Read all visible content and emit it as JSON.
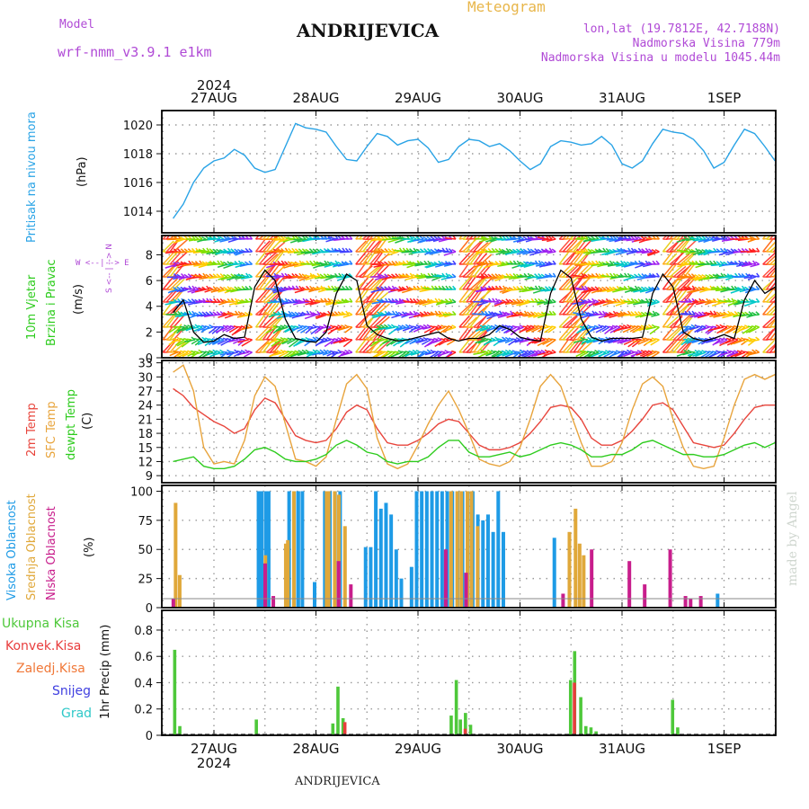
{
  "header": {
    "model_label": "Model",
    "model_name": "wrf-nmm_v3.9.1 e1km",
    "station": "ANDRIJEVICA",
    "title": "Meteogram",
    "coords": "lon,lat (19.7812E, 42.7188N)",
    "altitude": "Nadmorska Visina 779m",
    "model_altitude": "Nadmorska Visina u modelu 1045.44m",
    "footer_station": "ANDRIJEVICA",
    "watermark": "made by Angel"
  },
  "time_axis": {
    "year": "2024",
    "labels": [
      "27AUG",
      "28AUG",
      "29AUG",
      "30AUG",
      "31AUG",
      "1SEP"
    ]
  },
  "panel_labels": {
    "pressure": "Pritisak na nivou mora",
    "pressure_unit": "(hPa)",
    "wind_title": "10m Vjetar",
    "wind_sub": "Brzina i Pravac",
    "wind_unit": "(m/s)",
    "compass": "W <--|--> E",
    "compass_ns": "S <-- | --> N",
    "temp_2m": "2m Temp",
    "temp_sfc": "SFC Temp",
    "temp_dew": "dewpt Temp",
    "temp_unit": "(C)",
    "cloud_high": "Visoka Oblacnost",
    "cloud_mid": "Srednja Oblacnost",
    "cloud_low": "Niska Oblacnost",
    "cloud_unit": "(%)",
    "precip_unit": "1hr Precip (mm)",
    "precip_legend": [
      "Ukupna Kisa",
      "Konvek.Kisa",
      "Zaledj.Kisa",
      "Snijeg",
      "Grad"
    ]
  },
  "colors": {
    "pressure": "#29a3e6",
    "temp2m": "#e8453c",
    "sfc": "#e8a43c",
    "dew": "#2ecc1e",
    "high": "#1e9be6",
    "mid": "#e0a83a",
    "low": "#c81e8c",
    "precip_total": "#4ec83a",
    "precip_conv": "#e83c3c",
    "precip_frz": "#f07838",
    "snow": "#4040e0",
    "hail": "#2ec8c8",
    "purple": "#b04ad6"
  },
  "chart_data": [
    {
      "type": "line",
      "name": "pressure",
      "x_unit": "day from 27AUG 00",
      "ylim": [
        1012.5,
        1021
      ],
      "yticks": [
        1014,
        1016,
        1018,
        1020
      ],
      "x": [
        -0.4,
        -0.3,
        -0.2,
        -0.1,
        0,
        0.1,
        0.2,
        0.3,
        0.4,
        0.5,
        0.6,
        0.7,
        0.8,
        0.9,
        1.0,
        1.1,
        1.2,
        1.3,
        1.4,
        1.5,
        1.6,
        1.7,
        1.8,
        1.9,
        2.0,
        2.1,
        2.2,
        2.3,
        2.4,
        2.5,
        2.6,
        2.7,
        2.8,
        2.9,
        3.0,
        3.1,
        3.2,
        3.3,
        3.4,
        3.5,
        3.6,
        3.7,
        3.8,
        3.9,
        4.0,
        4.1,
        4.2,
        4.3,
        4.4,
        4.5,
        4.6,
        4.7,
        4.8,
        4.9,
        5.0,
        5.1,
        5.2,
        5.3,
        5.4,
        5.5
      ],
      "y": [
        1013.5,
        1014.5,
        1016,
        1017,
        1017.5,
        1017.7,
        1018.3,
        1017.9,
        1017.0,
        1016.7,
        1016.9,
        1018.5,
        1020.1,
        1019.8,
        1019.7,
        1019.5,
        1018.5,
        1017.6,
        1017.5,
        1018.5,
        1019.4,
        1019.2,
        1018.6,
        1018.9,
        1019.0,
        1018.4,
        1017.4,
        1017.6,
        1018.5,
        1019.0,
        1018.9,
        1018.5,
        1018.7,
        1018.2,
        1017.5,
        1016.9,
        1017.3,
        1018.5,
        1018.9,
        1018.8,
        1018.6,
        1018.7,
        1019.2,
        1018.6,
        1017.3,
        1017.0,
        1017.5,
        1018.7,
        1019.7,
        1019.5,
        1019.4,
        1019.0,
        1018.2,
        1017.0,
        1017.4,
        1018.6,
        1019.7,
        1019.4,
        1018.5,
        1017.5
      ]
    },
    {
      "type": "line",
      "name": "wind_speed",
      "ylim": [
        0,
        9.5
      ],
      "yticks": [
        0,
        2,
        4,
        6,
        8
      ],
      "x": [
        -0.4,
        -0.3,
        -0.2,
        -0.1,
        0,
        0.1,
        0.2,
        0.3,
        0.4,
        0.5,
        0.6,
        0.7,
        0.8,
        0.9,
        1.0,
        1.1,
        1.2,
        1.3,
        1.4,
        1.5,
        1.6,
        1.7,
        1.8,
        1.9,
        2.0,
        2.1,
        2.2,
        2.3,
        2.4,
        2.5,
        2.6,
        2.7,
        2.8,
        2.9,
        3.0,
        3.1,
        3.2,
        3.3,
        3.4,
        3.5,
        3.6,
        3.7,
        3.8,
        3.9,
        4.0,
        4.1,
        4.2,
        4.3,
        4.4,
        4.5,
        4.6,
        4.7,
        4.8,
        4.9,
        5.0,
        5.1,
        5.2,
        5.3,
        5.4,
        5.5
      ],
      "y": [
        3.5,
        4.5,
        2.0,
        1.2,
        1.3,
        1.8,
        1.5,
        1.6,
        5.5,
        6.8,
        6.0,
        3.0,
        1.5,
        1.3,
        1.2,
        2.0,
        5.0,
        6.5,
        6.0,
        2.5,
        1.8,
        1.5,
        1.3,
        1.4,
        1.6,
        1.8,
        2.0,
        1.5,
        1.3,
        1.5,
        1.5,
        1.8,
        2.5,
        2.2,
        1.6,
        1.4,
        1.3,
        5.0,
        6.8,
        6.2,
        3.0,
        1.6,
        1.3,
        1.5,
        1.5,
        1.5,
        1.6,
        5.0,
        6.5,
        5.5,
        2.0,
        1.5,
        1.3,
        1.5,
        1.8,
        1.5,
        4.5,
        6.0,
        5.0,
        5.5
      ]
    },
    {
      "type": "line",
      "name": "temperature",
      "ylim": [
        7.5,
        33.5
      ],
      "yticks": [
        9,
        12,
        15,
        18,
        21,
        24,
        27,
        30,
        33
      ],
      "x": [
        -0.4,
        -0.3,
        -0.2,
        -0.1,
        0,
        0.1,
        0.2,
        0.3,
        0.4,
        0.5,
        0.6,
        0.7,
        0.8,
        0.9,
        1.0,
        1.1,
        1.2,
        1.3,
        1.4,
        1.5,
        1.6,
        1.7,
        1.8,
        1.9,
        2.0,
        2.1,
        2.2,
        2.3,
        2.4,
        2.5,
        2.6,
        2.7,
        2.8,
        2.9,
        3.0,
        3.1,
        3.2,
        3.3,
        3.4,
        3.5,
        3.6,
        3.7,
        3.8,
        3.9,
        4.0,
        4.1,
        4.2,
        4.3,
        4.4,
        4.5,
        4.6,
        4.7,
        4.8,
        4.9,
        5.0,
        5.1,
        5.2,
        5.3,
        5.4,
        5.5
      ],
      "series": [
        {
          "name": "2m Temp",
          "color": "#e8453c",
          "values": [
            27.5,
            26.0,
            23.5,
            22.0,
            20.5,
            19.5,
            18.0,
            19.0,
            23.0,
            25.5,
            24.5,
            21.0,
            17.5,
            16.5,
            16.0,
            16.5,
            19.0,
            22.5,
            24.0,
            23.0,
            19.0,
            16.0,
            15.5,
            15.5,
            16.5,
            18.0,
            20.0,
            21.0,
            20.5,
            18.0,
            15.5,
            14.5,
            14.5,
            15.0,
            16.0,
            18.0,
            20.5,
            23.5,
            24.0,
            23.5,
            21.0,
            17.0,
            15.5,
            15.5,
            16.5,
            18.5,
            21.0,
            24.0,
            24.5,
            23.0,
            19.5,
            16.0,
            15.5,
            15.0,
            15.5,
            18.0,
            21.0,
            23.5,
            24.0,
            24.0
          ]
        },
        {
          "name": "SFC Temp",
          "color": "#e8a43c",
          "values": [
            31.0,
            32.5,
            27.0,
            15.0,
            11.5,
            12.0,
            11.5,
            16.5,
            26.0,
            30.0,
            28.0,
            20.0,
            12.5,
            12.0,
            11.0,
            13.0,
            21.0,
            28.5,
            30.5,
            27.5,
            17.0,
            11.5,
            10.5,
            11.5,
            15.5,
            20.0,
            24.0,
            27.0,
            23.0,
            18.0,
            12.5,
            11.5,
            11.0,
            12.0,
            15.0,
            21.0,
            28.0,
            30.5,
            28.0,
            22.0,
            16.0,
            11.0,
            11.0,
            12.0,
            16.0,
            23.0,
            28.5,
            30.0,
            28.0,
            21.0,
            15.0,
            11.0,
            10.5,
            11.0,
            17.0,
            24.0,
            29.5,
            30.5,
            29.5,
            30.5
          ]
        },
        {
          "name": "dewpt Temp",
          "color": "#2ecc1e",
          "values": [
            12.0,
            12.5,
            13.0,
            11.0,
            10.5,
            10.5,
            11.0,
            12.5,
            14.5,
            15.0,
            14.0,
            12.5,
            12.0,
            12.0,
            12.5,
            13.5,
            15.5,
            16.5,
            15.5,
            14.0,
            13.5,
            12.0,
            11.5,
            12.0,
            12.0,
            13.0,
            15.0,
            16.5,
            16.5,
            14.0,
            13.0,
            13.0,
            13.5,
            14.0,
            13.0,
            13.5,
            14.5,
            15.5,
            16.0,
            15.5,
            14.5,
            13.0,
            13.0,
            13.5,
            13.5,
            14.5,
            16.0,
            16.5,
            15.5,
            14.5,
            13.5,
            13.5,
            13.0,
            13.0,
            13.5,
            14.5,
            15.5,
            16.0,
            15.0,
            16.0
          ]
        }
      ]
    },
    {
      "type": "bar",
      "name": "cloud_cover",
      "ylim": [
        0,
        105
      ],
      "yticks": [
        0,
        25,
        50,
        75,
        100
      ],
      "series": [
        {
          "name": "Visoka Oblacnost",
          "color": "#1e9be6",
          "x": [
            0.45,
            0.48,
            0.52,
            0.55,
            0.75,
            0.8,
            0.84,
            0.88,
            1.0,
            1.1,
            1.15,
            1.2,
            1.25,
            1.5,
            1.55,
            1.6,
            1.65,
            1.7,
            1.75,
            1.8,
            1.85,
            1.95,
            2.0,
            2.05,
            2.1,
            2.15,
            2.2,
            2.25,
            2.3,
            2.35,
            2.4,
            2.45,
            2.5,
            2.55,
            2.6,
            2.65,
            2.7,
            2.75,
            2.8,
            2.85,
            3.35,
            4.95
          ],
          "values": [
            100,
            100,
            100,
            100,
            100,
            100,
            100,
            100,
            22,
            100,
            100,
            100,
            100,
            52,
            52,
            100,
            85,
            90,
            80,
            50,
            25,
            35,
            100,
            100,
            100,
            100,
            100,
            100,
            100,
            100,
            100,
            100,
            100,
            100,
            80,
            75,
            80,
            65,
            100,
            65,
            60,
            12
          ]
        },
        {
          "name": "Srednja Oblacnost",
          "color": "#e0a83a",
          "x": [
            -0.38,
            -0.34,
            0.5,
            0.7,
            0.72,
            0.78,
            1.1,
            1.12,
            1.18,
            1.22,
            1.28,
            2.32,
            2.38,
            2.42,
            2.48,
            2.52,
            2.58,
            3.48,
            3.54,
            3.58,
            3.62
          ],
          "values": [
            90,
            28,
            45,
            55,
            58,
            100,
            100,
            100,
            100,
            97,
            70,
            100,
            100,
            100,
            100,
            100,
            70,
            65,
            85,
            55,
            45
          ]
        },
        {
          "name": "Niska Oblacnost",
          "color": "#c81e8c",
          "x": [
            -0.42,
            0.48,
            0.56,
            1.2,
            1.32,
            2.25,
            2.45,
            3.4,
            3.68,
            4.05,
            4.2,
            4.45,
            4.6,
            4.65,
            4.75
          ],
          "values": [
            8,
            38,
            10,
            40,
            20,
            50,
            30,
            12,
            50,
            40,
            20,
            50,
            10,
            8,
            10
          ]
        }
      ]
    },
    {
      "type": "bar",
      "name": "precipitation",
      "ylim": [
        0,
        0.95
      ],
      "yticks": [
        0,
        0.2,
        0.4,
        0.6,
        0.8
      ],
      "series": [
        {
          "name": "Ukupna Kisa",
          "color": "#4ec83a",
          "x": [
            -0.38,
            -0.33,
            0.42,
            1.17,
            1.22,
            1.27,
            2.33,
            2.38,
            2.42,
            2.47,
            2.52,
            3.5,
            3.54,
            3.6,
            3.65,
            3.7,
            3.75,
            4.5,
            4.55
          ],
          "values": [
            0.65,
            0.07,
            0.12,
            0.09,
            0.37,
            0.13,
            0.15,
            0.42,
            0.12,
            0.17,
            0.08,
            0.42,
            0.64,
            0.29,
            0.07,
            0.06,
            0.03,
            0.27,
            0.06
          ]
        },
        {
          "name": "Konvek.Kisa",
          "color": "#e83c3c",
          "x": [
            1.27,
            2.45,
            3.52
          ],
          "values": [
            0.1,
            0.05,
            0.4
          ]
        }
      ]
    }
  ]
}
